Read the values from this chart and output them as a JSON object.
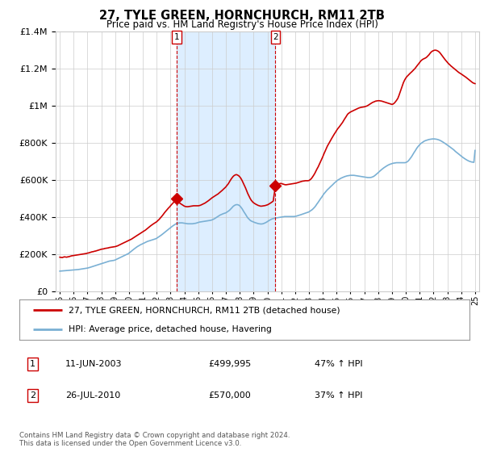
{
  "title": "27, TYLE GREEN, HORNCHURCH, RM11 2TB",
  "subtitle": "Price paid vs. HM Land Registry's House Price Index (HPI)",
  "legend_line1": "27, TYLE GREEN, HORNCHURCH, RM11 2TB (detached house)",
  "legend_line2": "HPI: Average price, detached house, Havering",
  "footnote": "Contains HM Land Registry data © Crown copyright and database right 2024.\nThis data is licensed under the Open Government Licence v3.0.",
  "sale1_label": "1",
  "sale1_date": "11-JUN-2003",
  "sale1_price": "£499,995",
  "sale1_hpi": "47% ↑ HPI",
  "sale2_label": "2",
  "sale2_date": "26-JUL-2010",
  "sale2_price": "£570,000",
  "sale2_hpi": "37% ↑ HPI",
  "sale1_x": 2003.44,
  "sale2_x": 2010.58,
  "sale1_y": 499995,
  "sale2_y": 570000,
  "red_color": "#cc0000",
  "blue_color": "#7ab0d4",
  "shade_color": "#ddeeff",
  "bg_color": "#ffffff",
  "grid_color": "#cccccc",
  "ylim": [
    0,
    1400000
  ],
  "xlim": [
    1994.7,
    2025.3
  ],
  "red_x": [
    1995.0,
    1995.08,
    1995.17,
    1995.25,
    1995.33,
    1995.42,
    1995.5,
    1995.58,
    1995.67,
    1995.75,
    1995.83,
    1995.92,
    1996.0,
    1996.08,
    1996.17,
    1996.25,
    1996.33,
    1996.42,
    1996.5,
    1996.58,
    1996.67,
    1996.75,
    1996.83,
    1996.92,
    1997.0,
    1997.08,
    1997.17,
    1997.25,
    1997.33,
    1997.42,
    1997.5,
    1997.58,
    1997.67,
    1997.75,
    1997.83,
    1997.92,
    1998.0,
    1998.08,
    1998.17,
    1998.25,
    1998.33,
    1998.42,
    1998.5,
    1998.58,
    1998.67,
    1998.75,
    1998.83,
    1998.92,
    1999.0,
    1999.08,
    1999.17,
    1999.25,
    1999.33,
    1999.42,
    1999.5,
    1999.58,
    1999.67,
    1999.75,
    1999.83,
    1999.92,
    2000.0,
    2000.08,
    2000.17,
    2000.25,
    2000.33,
    2000.42,
    2000.5,
    2000.58,
    2000.67,
    2000.75,
    2000.83,
    2000.92,
    2001.0,
    2001.08,
    2001.17,
    2001.25,
    2001.33,
    2001.42,
    2001.5,
    2001.58,
    2001.67,
    2001.75,
    2001.83,
    2001.92,
    2002.0,
    2002.08,
    2002.17,
    2002.25,
    2002.33,
    2002.42,
    2002.5,
    2002.58,
    2002.67,
    2002.75,
    2002.83,
    2002.92,
    2003.0,
    2003.08,
    2003.17,
    2003.25,
    2003.33,
    2003.44,
    2003.5,
    2003.58,
    2003.67,
    2003.75,
    2003.83,
    2003.92,
    2004.0,
    2004.08,
    2004.17,
    2004.25,
    2004.33,
    2004.42,
    2004.5,
    2004.58,
    2004.67,
    2004.75,
    2004.83,
    2004.92,
    2005.0,
    2005.08,
    2005.17,
    2005.25,
    2005.33,
    2005.42,
    2005.5,
    2005.58,
    2005.67,
    2005.75,
    2005.83,
    2005.92,
    2006.0,
    2006.08,
    2006.17,
    2006.25,
    2006.33,
    2006.42,
    2006.5,
    2006.58,
    2006.67,
    2006.75,
    2006.83,
    2006.92,
    2007.0,
    2007.08,
    2007.17,
    2007.25,
    2007.33,
    2007.42,
    2007.5,
    2007.58,
    2007.67,
    2007.75,
    2007.83,
    2007.92,
    2008.0,
    2008.08,
    2008.17,
    2008.25,
    2008.33,
    2008.42,
    2008.5,
    2008.58,
    2008.67,
    2008.75,
    2008.83,
    2008.92,
    2009.0,
    2009.08,
    2009.17,
    2009.25,
    2009.33,
    2009.42,
    2009.5,
    2009.58,
    2009.67,
    2009.75,
    2009.83,
    2009.92,
    2010.0,
    2010.08,
    2010.17,
    2010.25,
    2010.33,
    2010.42,
    2010.58,
    2010.67,
    2010.75,
    2010.83,
    2010.92,
    2011.0,
    2011.08,
    2011.17,
    2011.25,
    2011.33,
    2011.42,
    2011.5,
    2011.58,
    2011.67,
    2011.75,
    2011.83,
    2011.92,
    2012.0,
    2012.08,
    2012.17,
    2012.25,
    2012.33,
    2012.42,
    2012.5,
    2012.58,
    2012.67,
    2012.75,
    2012.83,
    2012.92,
    2013.0,
    2013.08,
    2013.17,
    2013.25,
    2013.33,
    2013.42,
    2013.5,
    2013.58,
    2013.67,
    2013.75,
    2013.83,
    2013.92,
    2014.0,
    2014.08,
    2014.17,
    2014.25,
    2014.33,
    2014.42,
    2014.5,
    2014.58,
    2014.67,
    2014.75,
    2014.83,
    2014.92,
    2015.0,
    2015.08,
    2015.17,
    2015.25,
    2015.33,
    2015.42,
    2015.5,
    2015.58,
    2015.67,
    2015.75,
    2015.83,
    2015.92,
    2016.0,
    2016.08,
    2016.17,
    2016.25,
    2016.33,
    2016.42,
    2016.5,
    2016.58,
    2016.67,
    2016.75,
    2016.83,
    2016.92,
    2017.0,
    2017.08,
    2017.17,
    2017.25,
    2017.33,
    2017.42,
    2017.5,
    2017.58,
    2017.67,
    2017.75,
    2017.83,
    2017.92,
    2018.0,
    2018.08,
    2018.17,
    2018.25,
    2018.33,
    2018.42,
    2018.5,
    2018.58,
    2018.67,
    2018.75,
    2018.83,
    2018.92,
    2019.0,
    2019.08,
    2019.17,
    2019.25,
    2019.33,
    2019.42,
    2019.5,
    2019.58,
    2019.67,
    2019.75,
    2019.83,
    2019.92,
    2020.0,
    2020.08,
    2020.17,
    2020.25,
    2020.33,
    2020.42,
    2020.5,
    2020.58,
    2020.67,
    2020.75,
    2020.83,
    2020.92,
    2021.0,
    2021.08,
    2021.17,
    2021.25,
    2021.33,
    2021.42,
    2021.5,
    2021.58,
    2021.67,
    2021.75,
    2021.83,
    2021.92,
    2022.0,
    2022.08,
    2022.17,
    2022.25,
    2022.33,
    2022.42,
    2022.5,
    2022.58,
    2022.67,
    2022.75,
    2022.83,
    2022.92,
    2023.0,
    2023.08,
    2023.17,
    2023.25,
    2023.33,
    2023.42,
    2023.5,
    2023.58,
    2023.67,
    2023.75,
    2023.83,
    2023.92,
    2024.0,
    2024.08,
    2024.17,
    2024.25,
    2024.33,
    2024.42,
    2024.5,
    2024.58,
    2024.67,
    2024.75,
    2024.83,
    2024.92,
    2025.0
  ],
  "red_y": [
    185000,
    184000,
    183000,
    185000,
    187000,
    186000,
    185000,
    187000,
    188000,
    190000,
    192000,
    193000,
    194000,
    195000,
    196000,
    197000,
    198000,
    199000,
    200000,
    201000,
    202000,
    203000,
    204000,
    205000,
    207000,
    208000,
    210000,
    212000,
    214000,
    215000,
    217000,
    218000,
    220000,
    222000,
    224000,
    226000,
    228000,
    229000,
    230000,
    232000,
    233000,
    234000,
    235000,
    237000,
    238000,
    239000,
    240000,
    241000,
    242000,
    244000,
    246000,
    249000,
    252000,
    255000,
    258000,
    261000,
    264000,
    267000,
    270000,
    273000,
    276000,
    279000,
    282000,
    286000,
    290000,
    294000,
    298000,
    302000,
    306000,
    310000,
    314000,
    318000,
    322000,
    326000,
    330000,
    335000,
    340000,
    345000,
    350000,
    355000,
    360000,
    364000,
    368000,
    372000,
    376000,
    382000,
    388000,
    395000,
    402000,
    410000,
    418000,
    426000,
    434000,
    441000,
    448000,
    455000,
    462000,
    469000,
    476000,
    483000,
    490000,
    499995,
    490000,
    482000,
    476000,
    472000,
    468000,
    464000,
    460000,
    458000,
    457000,
    457000,
    458000,
    459000,
    460000,
    461000,
    462000,
    462000,
    462000,
    462000,
    462000,
    463000,
    465000,
    468000,
    471000,
    474000,
    477000,
    481000,
    485000,
    490000,
    495000,
    500000,
    505000,
    509000,
    513000,
    517000,
    521000,
    525000,
    530000,
    535000,
    540000,
    546000,
    552000,
    558000,
    564000,
    572000,
    580000,
    590000,
    600000,
    610000,
    618000,
    624000,
    628000,
    630000,
    628000,
    624000,
    618000,
    610000,
    598000,
    585000,
    572000,
    558000,
    543000,
    528000,
    514000,
    502000,
    492000,
    484000,
    478000,
    474000,
    470000,
    467000,
    464000,
    462000,
    460000,
    460000,
    461000,
    462000,
    463000,
    465000,
    467000,
    470000,
    474000,
    478000,
    482000,
    487000,
    570000,
    575000,
    578000,
    580000,
    582000,
    582000,
    580000,
    578000,
    576000,
    575000,
    576000,
    577000,
    578000,
    579000,
    580000,
    581000,
    582000,
    583000,
    584000,
    586000,
    588000,
    590000,
    592000,
    594000,
    595000,
    596000,
    597000,
    597000,
    597000,
    598000,
    602000,
    608000,
    616000,
    625000,
    636000,
    648000,
    660000,
    672000,
    685000,
    698000,
    712000,
    726000,
    741000,
    756000,
    770000,
    783000,
    795000,
    806000,
    817000,
    828000,
    838000,
    848000,
    858000,
    868000,
    877000,
    885000,
    893000,
    901000,
    910000,
    920000,
    930000,
    940000,
    950000,
    958000,
    963000,
    967000,
    970000,
    973000,
    976000,
    979000,
    982000,
    985000,
    988000,
    990000,
    992000,
    993000,
    994000,
    995000,
    997000,
    999000,
    1002000,
    1006000,
    1010000,
    1014000,
    1018000,
    1021000,
    1024000,
    1026000,
    1027000,
    1028000,
    1028000,
    1027000,
    1026000,
    1024000,
    1022000,
    1020000,
    1018000,
    1016000,
    1014000,
    1012000,
    1010000,
    1008000,
    1010000,
    1015000,
    1022000,
    1030000,
    1040000,
    1055000,
    1072000,
    1090000,
    1108000,
    1126000,
    1140000,
    1150000,
    1158000,
    1165000,
    1171000,
    1177000,
    1183000,
    1189000,
    1195000,
    1202000,
    1210000,
    1218000,
    1226000,
    1234000,
    1242000,
    1248000,
    1252000,
    1255000,
    1258000,
    1262000,
    1268000,
    1275000,
    1283000,
    1290000,
    1295000,
    1298000,
    1300000,
    1300000,
    1298000,
    1295000,
    1290000,
    1283000,
    1275000,
    1266000,
    1258000,
    1250000,
    1242000,
    1235000,
    1228000,
    1222000,
    1216000,
    1211000,
    1206000,
    1200000,
    1195000,
    1190000,
    1185000,
    1180000,
    1176000,
    1172000,
    1168000,
    1164000,
    1160000,
    1155000,
    1150000,
    1145000,
    1140000,
    1135000,
    1130000,
    1125000,
    1122000,
    1120000
  ],
  "blue_x": [
    1995.0,
    1995.08,
    1995.17,
    1995.25,
    1995.33,
    1995.42,
    1995.5,
    1995.58,
    1995.67,
    1995.75,
    1995.83,
    1995.92,
    1996.0,
    1996.08,
    1996.17,
    1996.25,
    1996.33,
    1996.42,
    1996.5,
    1996.58,
    1996.67,
    1996.75,
    1996.83,
    1996.92,
    1997.0,
    1997.08,
    1997.17,
    1997.25,
    1997.33,
    1997.42,
    1997.5,
    1997.58,
    1997.67,
    1997.75,
    1997.83,
    1997.92,
    1998.0,
    1998.08,
    1998.17,
    1998.25,
    1998.33,
    1998.42,
    1998.5,
    1998.58,
    1998.67,
    1998.75,
    1998.83,
    1998.92,
    1999.0,
    1999.08,
    1999.17,
    1999.25,
    1999.33,
    1999.42,
    1999.5,
    1999.58,
    1999.67,
    1999.75,
    1999.83,
    1999.92,
    2000.0,
    2000.08,
    2000.17,
    2000.25,
    2000.33,
    2000.42,
    2000.5,
    2000.58,
    2000.67,
    2000.75,
    2000.83,
    2000.92,
    2001.0,
    2001.08,
    2001.17,
    2001.25,
    2001.33,
    2001.42,
    2001.5,
    2001.58,
    2001.67,
    2001.75,
    2001.83,
    2001.92,
    2002.0,
    2002.08,
    2002.17,
    2002.25,
    2002.33,
    2002.42,
    2002.5,
    2002.58,
    2002.67,
    2002.75,
    2002.83,
    2002.92,
    2003.0,
    2003.08,
    2003.17,
    2003.25,
    2003.33,
    2003.42,
    2003.5,
    2003.58,
    2003.67,
    2003.75,
    2003.83,
    2003.92,
    2004.0,
    2004.08,
    2004.17,
    2004.25,
    2004.33,
    2004.42,
    2004.5,
    2004.58,
    2004.67,
    2004.75,
    2004.83,
    2004.92,
    2005.0,
    2005.08,
    2005.17,
    2005.25,
    2005.33,
    2005.42,
    2005.5,
    2005.58,
    2005.67,
    2005.75,
    2005.83,
    2005.92,
    2006.0,
    2006.08,
    2006.17,
    2006.25,
    2006.33,
    2006.42,
    2006.5,
    2006.58,
    2006.67,
    2006.75,
    2006.83,
    2006.92,
    2007.0,
    2007.08,
    2007.17,
    2007.25,
    2007.33,
    2007.42,
    2007.5,
    2007.58,
    2007.67,
    2007.75,
    2007.83,
    2007.92,
    2008.0,
    2008.08,
    2008.17,
    2008.25,
    2008.33,
    2008.42,
    2008.5,
    2008.58,
    2008.67,
    2008.75,
    2008.83,
    2008.92,
    2009.0,
    2009.08,
    2009.17,
    2009.25,
    2009.33,
    2009.42,
    2009.5,
    2009.58,
    2009.67,
    2009.75,
    2009.83,
    2009.92,
    2010.0,
    2010.08,
    2010.17,
    2010.25,
    2010.33,
    2010.42,
    2010.5,
    2010.58,
    2010.67,
    2010.75,
    2010.83,
    2010.92,
    2011.0,
    2011.08,
    2011.17,
    2011.25,
    2011.33,
    2011.42,
    2011.5,
    2011.58,
    2011.67,
    2011.75,
    2011.83,
    2011.92,
    2012.0,
    2012.08,
    2012.17,
    2012.25,
    2012.33,
    2012.42,
    2012.5,
    2012.58,
    2012.67,
    2012.75,
    2012.83,
    2012.92,
    2013.0,
    2013.08,
    2013.17,
    2013.25,
    2013.33,
    2013.42,
    2013.5,
    2013.58,
    2013.67,
    2013.75,
    2013.83,
    2013.92,
    2014.0,
    2014.08,
    2014.17,
    2014.25,
    2014.33,
    2014.42,
    2014.5,
    2014.58,
    2014.67,
    2014.75,
    2014.83,
    2014.92,
    2015.0,
    2015.08,
    2015.17,
    2015.25,
    2015.33,
    2015.42,
    2015.5,
    2015.58,
    2015.67,
    2015.75,
    2015.83,
    2015.92,
    2016.0,
    2016.08,
    2016.17,
    2016.25,
    2016.33,
    2016.42,
    2016.5,
    2016.58,
    2016.67,
    2016.75,
    2016.83,
    2016.92,
    2017.0,
    2017.08,
    2017.17,
    2017.25,
    2017.33,
    2017.42,
    2017.5,
    2017.58,
    2017.67,
    2017.75,
    2017.83,
    2017.92,
    2018.0,
    2018.08,
    2018.17,
    2018.25,
    2018.33,
    2018.42,
    2018.5,
    2018.58,
    2018.67,
    2018.75,
    2018.83,
    2018.92,
    2019.0,
    2019.08,
    2019.17,
    2019.25,
    2019.33,
    2019.42,
    2019.5,
    2019.58,
    2019.67,
    2019.75,
    2019.83,
    2019.92,
    2020.0,
    2020.08,
    2020.17,
    2020.25,
    2020.33,
    2020.42,
    2020.5,
    2020.58,
    2020.67,
    2020.75,
    2020.83,
    2020.92,
    2021.0,
    2021.08,
    2021.17,
    2021.25,
    2021.33,
    2021.42,
    2021.5,
    2021.58,
    2021.67,
    2021.75,
    2021.83,
    2021.92,
    2022.0,
    2022.08,
    2022.17,
    2022.25,
    2022.33,
    2022.42,
    2022.5,
    2022.58,
    2022.67,
    2022.75,
    2022.83,
    2022.92,
    2023.0,
    2023.08,
    2023.17,
    2023.25,
    2023.33,
    2023.42,
    2023.5,
    2023.58,
    2023.67,
    2023.75,
    2023.83,
    2023.92,
    2024.0,
    2024.08,
    2024.17,
    2024.25,
    2024.33,
    2024.42,
    2024.5,
    2024.58,
    2024.67,
    2024.75,
    2024.83,
    2024.92,
    2025.0
  ],
  "blue_y": [
    110000,
    110500,
    111000,
    111500,
    112000,
    112500,
    113000,
    113500,
    114000,
    114500,
    115000,
    115500,
    116000,
    116500,
    117000,
    117500,
    118500,
    119500,
    120500,
    121500,
    122500,
    123500,
    124500,
    125500,
    126500,
    128000,
    130000,
    132000,
    134000,
    136000,
    138000,
    140000,
    142000,
    144000,
    146000,
    148000,
    150000,
    152000,
    154000,
    156000,
    158000,
    160000,
    162000,
    164000,
    165000,
    166000,
    167000,
    168000,
    170000,
    173000,
    176000,
    179000,
    182000,
    185000,
    188000,
    191000,
    194000,
    197000,
    200000,
    203000,
    207000,
    212000,
    217000,
    222000,
    227000,
    232000,
    237000,
    241000,
    245000,
    249000,
    252000,
    255000,
    258000,
    261000,
    264000,
    267000,
    270000,
    272000,
    274000,
    276000,
    278000,
    280000,
    282000,
    284000,
    287000,
    291000,
    295000,
    299000,
    304000,
    309000,
    314000,
    319000,
    324000,
    329000,
    334000,
    339000,
    344000,
    349000,
    354000,
    358000,
    362000,
    366000,
    368000,
    369000,
    370000,
    370000,
    370000,
    369000,
    368000,
    367000,
    366000,
    365000,
    365000,
    365000,
    365000,
    365000,
    366000,
    367000,
    368000,
    370000,
    372000,
    374000,
    375000,
    376000,
    377000,
    378000,
    379000,
    380000,
    381000,
    382000,
    383000,
    384000,
    386000,
    389000,
    392000,
    396000,
    400000,
    404000,
    408000,
    412000,
    415000,
    418000,
    420000,
    422000,
    424000,
    428000,
    432000,
    437000,
    443000,
    450000,
    457000,
    462000,
    466000,
    468000,
    468000,
    466000,
    462000,
    455000,
    446000,
    436000,
    426000,
    416000,
    406000,
    397000,
    390000,
    384000,
    380000,
    377000,
    374000,
    372000,
    370000,
    368000,
    366000,
    365000,
    364000,
    364000,
    365000,
    367000,
    370000,
    373000,
    377000,
    381000,
    385000,
    388000,
    391000,
    393000,
    395000,
    396000,
    397000,
    398000,
    399000,
    400000,
    401000,
    402000,
    403000,
    404000,
    404000,
    404000,
    404000,
    404000,
    404000,
    404000,
    404000,
    404000,
    405000,
    406000,
    408000,
    410000,
    412000,
    414000,
    416000,
    418000,
    420000,
    422000,
    424000,
    426000,
    429000,
    433000,
    437000,
    442000,
    448000,
    455000,
    463000,
    472000,
    481000,
    490000,
    499000,
    508000,
    517000,
    526000,
    534000,
    541000,
    548000,
    554000,
    560000,
    566000,
    572000,
    578000,
    584000,
    590000,
    595000,
    600000,
    604000,
    608000,
    611000,
    614000,
    617000,
    619000,
    621000,
    623000,
    624000,
    625000,
    626000,
    626000,
    626000,
    626000,
    625000,
    624000,
    623000,
    622000,
    621000,
    620000,
    619000,
    618000,
    617000,
    616000,
    615000,
    614000,
    614000,
    614000,
    615000,
    617000,
    620000,
    624000,
    629000,
    634000,
    640000,
    646000,
    652000,
    657000,
    662000,
    667000,
    671000,
    675000,
    679000,
    682000,
    685000,
    687000,
    689000,
    691000,
    692000,
    693000,
    694000,
    694000,
    694000,
    694000,
    694000,
    694000,
    694000,
    694000,
    695000,
    698000,
    703000,
    710000,
    718000,
    727000,
    737000,
    747000,
    757000,
    767000,
    776000,
    784000,
    791000,
    797000,
    802000,
    806000,
    810000,
    813000,
    815000,
    817000,
    819000,
    820000,
    821000,
    822000,
    822000,
    822000,
    821000,
    820000,
    818000,
    816000,
    813000,
    810000,
    806000,
    802000,
    798000,
    794000,
    789000,
    785000,
    780000,
    776000,
    771000,
    766000,
    761000,
    755000,
    750000,
    745000,
    740000,
    735000,
    730000,
    725000,
    720000,
    716000,
    712000,
    708000,
    705000,
    702000,
    700000,
    698000,
    697000,
    696000,
    760000
  ]
}
